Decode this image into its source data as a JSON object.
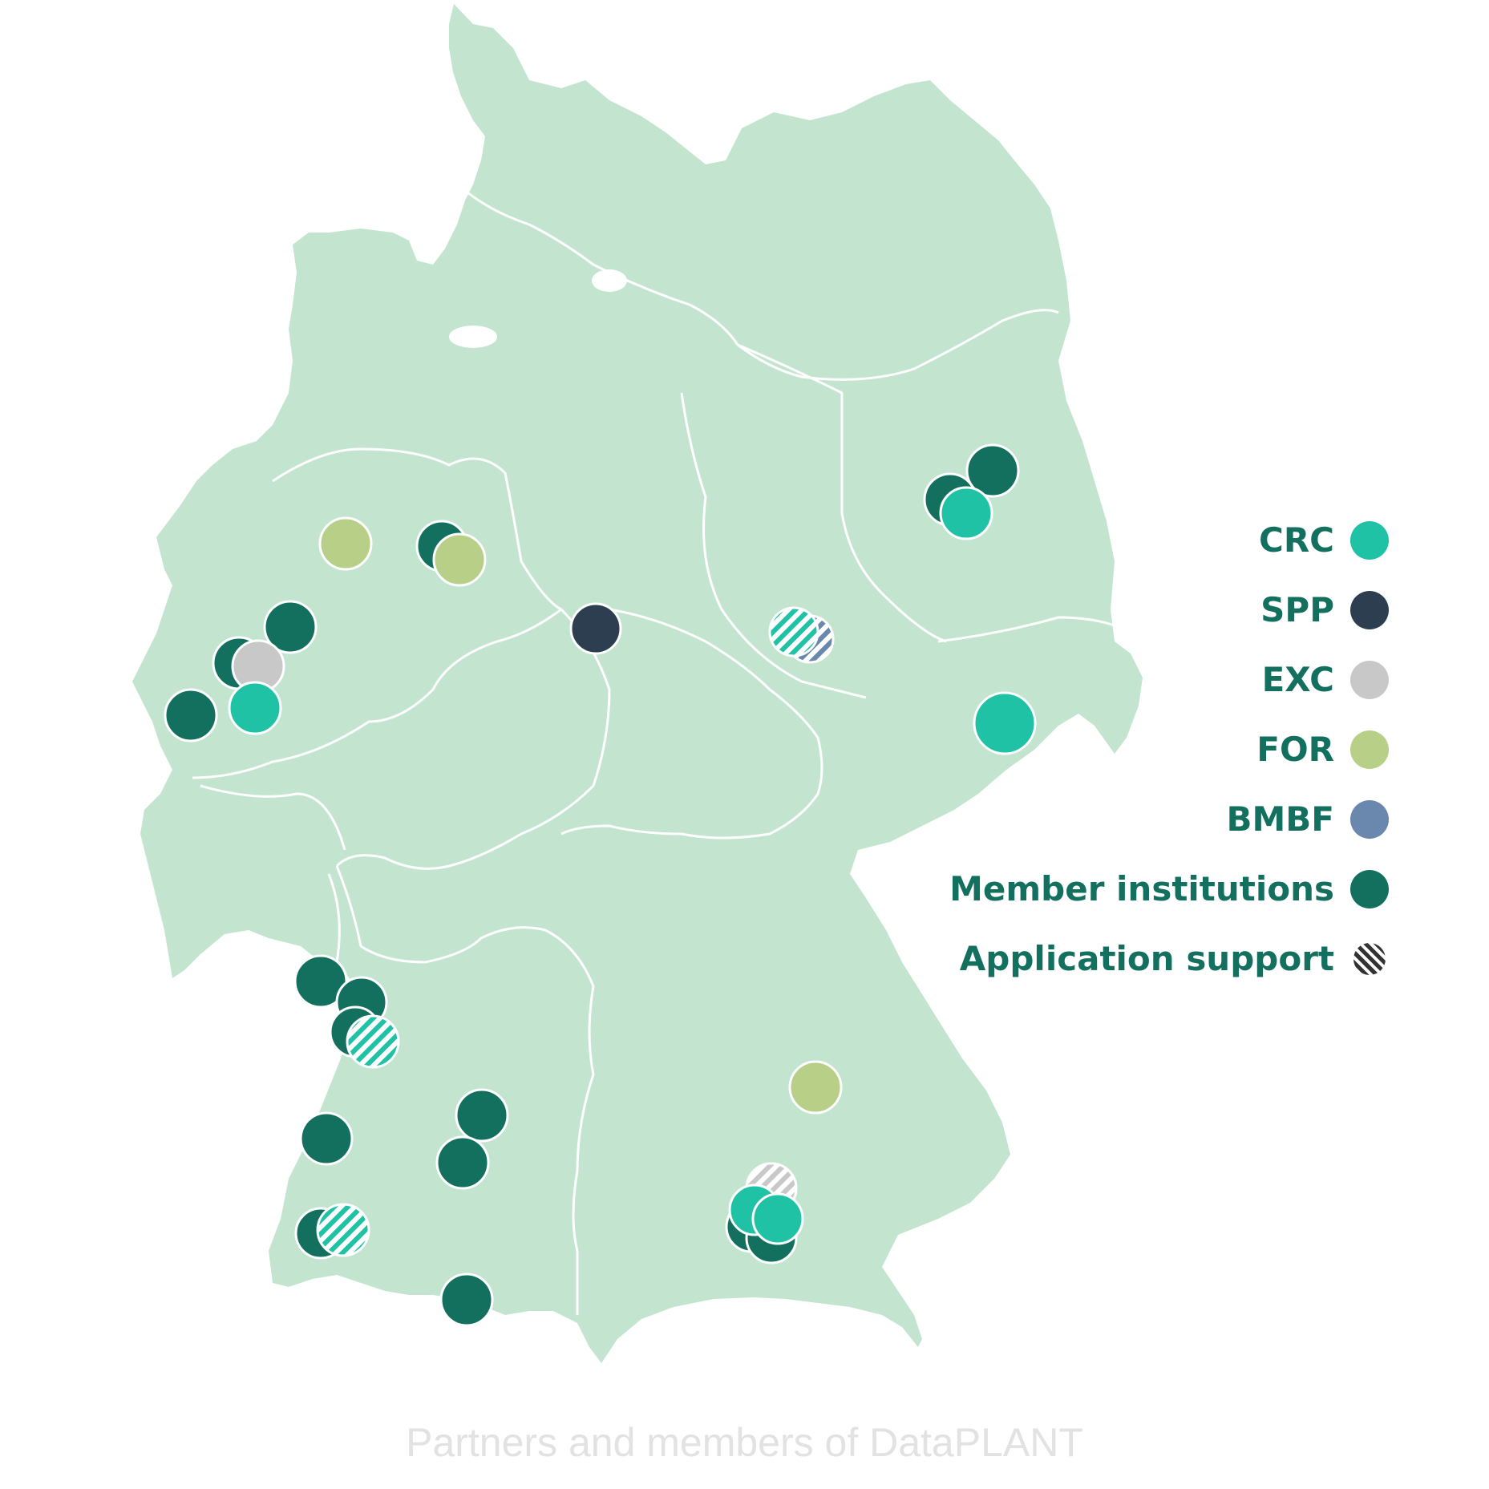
{
  "caption": "Partners and members of DataPLANT",
  "colors": {
    "land": "#c3e5d0",
    "border": "#ffffff",
    "crc": "#20c2a6",
    "spp": "#2c3e50",
    "exc": "#c8c8c8",
    "for": "#b7cf87",
    "bmbf": "#6a88ae",
    "member": "#13705f",
    "legend_text": "#13705f"
  },
  "legend": {
    "items": [
      {
        "label": "CRC",
        "key": "crc",
        "color": "#20c2a6",
        "pattern": "solid"
      },
      {
        "label": "SPP",
        "key": "spp",
        "color": "#2c3e50",
        "pattern": "solid"
      },
      {
        "label": "EXC",
        "key": "exc",
        "color": "#c8c8c8",
        "pattern": "solid"
      },
      {
        "label": "FOR",
        "key": "for",
        "color": "#b7cf87",
        "pattern": "solid"
      },
      {
        "label": "BMBF",
        "key": "bmbf",
        "color": "#6a88ae",
        "pattern": "solid"
      },
      {
        "label": "Member institutions",
        "key": "member",
        "color": "#13705f",
        "pattern": "solid"
      },
      {
        "label": "Application support",
        "key": "support",
        "color": "#2c3e50",
        "pattern": "hatched"
      }
    ]
  },
  "map": {
    "country": "Germany",
    "markers_by_type": {
      "member": 22,
      "crc": 5,
      "for": 3,
      "spp": 1,
      "exc": 1,
      "support": 5
    }
  }
}
